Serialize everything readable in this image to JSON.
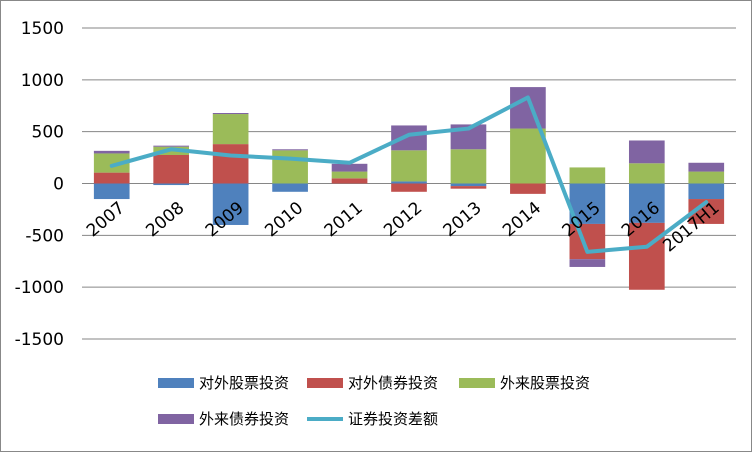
{
  "chart_data": {
    "type": "bar",
    "stacked": true,
    "title": "",
    "xlabel": "",
    "ylabel": "",
    "ylim": [
      -1500,
      1500
    ],
    "yticks": [
      1500,
      1000,
      500,
      0,
      -500,
      -1000,
      -1500
    ],
    "grid": true,
    "legend_position": "bottom",
    "categories": [
      "2007",
      "2008",
      "2009",
      "2010",
      "2011",
      "2012",
      "2013",
      "2014",
      "2015",
      "2016",
      "2017H1"
    ],
    "series": [
      {
        "name": "对外股票投资",
        "type": "bar",
        "color": "#4F81BD",
        "values": [
          -150,
          -15,
          -400,
          -80,
          0,
          20,
          -25,
          0,
          -390,
          -380,
          -150
        ]
      },
      {
        "name": "对外债券投资",
        "type": "bar",
        "color": "#C0504D",
        "values": [
          105,
          275,
          380,
          0,
          50,
          -80,
          -25,
          -100,
          -340,
          -645,
          -240
        ]
      },
      {
        "name": "外来股票投资",
        "type": "bar",
        "color": "#9BBB59",
        "values": [
          185,
          80,
          290,
          320,
          65,
          300,
          330,
          530,
          155,
          195,
          115
        ]
      },
      {
        "name": "外来债券投资",
        "type": "bar",
        "color": "#8064A2",
        "values": [
          25,
          10,
          10,
          10,
          75,
          240,
          240,
          400,
          -75,
          220,
          85
        ]
      },
      {
        "name": "证券投资差额",
        "type": "line",
        "color": "#4BACC6",
        "values": [
          170,
          330,
          270,
          240,
          200,
          470,
          530,
          830,
          -660,
          -610,
          -180
        ]
      }
    ]
  }
}
